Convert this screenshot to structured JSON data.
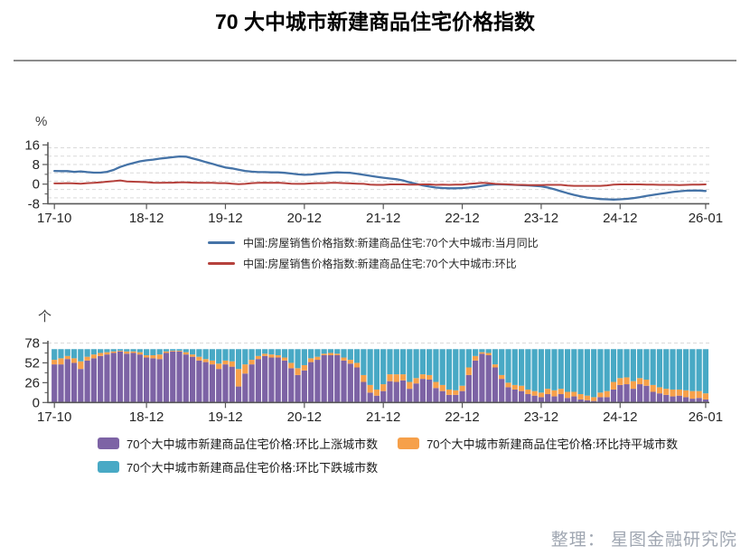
{
  "page": {
    "title": "70 大中城市新建商品住宅价格指数",
    "credit": "整理： 星图金融研究院"
  },
  "colors": {
    "yoy_line": "#4573a7",
    "mom_line": "#b5413c",
    "rise_bar": "#7d63a5",
    "flat_bar": "#f6a04a",
    "fall_bar": "#48a9c5",
    "axis": "#595959",
    "grid": "#d9d9d9",
    "tick_text": "#262626"
  },
  "chart_data": [
    {
      "type": "line",
      "unit_label": "%",
      "ylim": [
        -8,
        16
      ],
      "y_ticks": [
        16,
        8,
        0,
        -8
      ],
      "n_points": 100,
      "x_tick_labels": [
        "17-10",
        "18-12",
        "19-12",
        "20-12",
        "21-12",
        "22-12",
        "23-12",
        "24-12",
        "26-01"
      ],
      "x_tick_indices": [
        0,
        14,
        26,
        38,
        50,
        62,
        74,
        86,
        99
      ],
      "grid": "dashed-horizontal",
      "legend_position": "bottom",
      "series": [
        {
          "name": "中国:房屋销售价格指数:新建商品住宅:70个大中城市:当月同比",
          "color": "#4573a7",
          "values": [
            5.4,
            5.3,
            5.3,
            5.0,
            5.2,
            4.9,
            4.7,
            4.7,
            5.0,
            5.8,
            7.0,
            7.9,
            8.6,
            9.3,
            9.7,
            10.0,
            10.4,
            10.7,
            11.0,
            11.3,
            11.2,
            10.5,
            9.8,
            9.0,
            8.3,
            7.5,
            6.8,
            6.4,
            5.9,
            5.4,
            5.1,
            4.9,
            4.9,
            4.8,
            4.8,
            4.6,
            4.3,
            4.0,
            3.8,
            3.9,
            4.2,
            4.4,
            4.6,
            4.8,
            4.7,
            4.6,
            4.2,
            3.8,
            3.4,
            3.0,
            2.6,
            2.3,
            2.0,
            1.5,
            0.7,
            0.1,
            -0.5,
            -1.0,
            -1.4,
            -1.6,
            -1.7,
            -1.7,
            -1.6,
            -1.4,
            -1.1,
            -0.7,
            -0.3,
            -0.1,
            -0.1,
            -0.2,
            -0.3,
            -0.4,
            -0.5,
            -0.7,
            -0.9,
            -1.4,
            -2.1,
            -2.9,
            -3.7,
            -4.4,
            -5.0,
            -5.5,
            -5.8,
            -6.1,
            -6.2,
            -6.3,
            -6.2,
            -6.0,
            -5.7,
            -5.3,
            -4.8,
            -4.4,
            -4.0,
            -3.6,
            -3.2,
            -2.9,
            -2.7,
            -2.6,
            -2.6,
            -2.8
          ]
        },
        {
          "name": "中国:房屋销售价格指数:新建商品住宅:70个大中城市:环比",
          "color": "#b5413c",
          "values": [
            0.3,
            0.3,
            0.4,
            0.3,
            0.2,
            0.4,
            0.5,
            0.7,
            1.0,
            1.2,
            1.5,
            1.1,
            1.0,
            0.9,
            0.8,
            0.6,
            0.5,
            0.6,
            0.6,
            0.7,
            0.7,
            0.6,
            0.5,
            0.5,
            0.5,
            0.4,
            0.4,
            0.2,
            0.0,
            0.1,
            0.4,
            0.5,
            0.6,
            0.5,
            0.6,
            0.4,
            0.2,
            0.1,
            0.1,
            0.3,
            0.4,
            0.4,
            0.5,
            0.5,
            0.4,
            0.3,
            0.2,
            0.1,
            -0.2,
            -0.3,
            -0.3,
            -0.1,
            -0.1,
            -0.1,
            -0.2,
            -0.2,
            -0.1,
            -0.1,
            -0.3,
            -0.2,
            -0.3,
            -0.2,
            -0.2,
            0.1,
            0.3,
            0.5,
            0.4,
            0.1,
            0.0,
            -0.1,
            -0.3,
            -0.3,
            -0.4,
            -0.4,
            -0.4,
            -0.3,
            -0.3,
            -0.3,
            -0.6,
            -0.7,
            -0.7,
            -0.7,
            -0.7,
            -0.7,
            -0.5,
            -0.2,
            -0.1,
            -0.1,
            -0.1,
            -0.1,
            -0.2,
            -0.2,
            -0.3,
            -0.3,
            -0.3,
            -0.4,
            -0.3,
            -0.2,
            -0.2,
            -0.1
          ]
        }
      ]
    },
    {
      "type": "bar",
      "stacked": true,
      "unit_label": "个",
      "ylim": [
        0,
        78
      ],
      "y_ticks": [
        0,
        26,
        52,
        78
      ],
      "stack_total": 70,
      "n_points": 100,
      "x_tick_labels": [
        "17-10",
        "18-12",
        "19-12",
        "20-12",
        "21-12",
        "22-12",
        "23-12",
        "24-12",
        "26-01"
      ],
      "x_tick_indices": [
        0,
        14,
        26,
        38,
        50,
        62,
        74,
        86,
        99
      ],
      "series": [
        {
          "name": "70个大中城市新建商品住宅价格:环比上涨城市数",
          "color": "#7d63a5",
          "values": [
            50,
            50,
            57,
            52,
            44,
            55,
            58,
            61,
            63,
            65,
            67,
            64,
            65,
            63,
            59,
            58,
            57,
            65,
            67,
            67,
            63,
            60,
            55,
            53,
            50,
            44,
            50,
            47,
            21,
            38,
            50,
            57,
            61,
            59,
            59,
            55,
            45,
            36,
            42,
            53,
            56,
            62,
            62,
            62,
            55,
            51,
            46,
            27,
            13,
            9,
            15,
            28,
            27,
            29,
            18,
            25,
            31,
            30,
            19,
            15,
            10,
            10,
            15,
            36,
            55,
            64,
            62,
            46,
            31,
            20,
            17,
            15,
            11,
            9,
            7,
            11,
            8,
            11,
            6,
            8,
            4,
            3,
            2,
            7,
            7,
            17,
            23,
            24,
            18,
            24,
            22,
            14,
            12,
            10,
            8,
            9,
            7,
            5,
            6,
            4
          ]
        },
        {
          "name": "70个大中城市新建商品住宅价格:环比持平城市数",
          "color": "#f6a04a",
          "values": [
            6,
            8,
            4,
            6,
            10,
            5,
            5,
            4,
            3,
            2,
            1,
            3,
            2,
            3,
            3,
            4,
            6,
            2,
            1,
            1,
            3,
            3,
            5,
            4,
            5,
            7,
            5,
            7,
            23,
            12,
            6,
            4,
            3,
            4,
            3,
            4,
            7,
            9,
            7,
            5,
            4,
            2,
            3,
            2,
            4,
            5,
            6,
            9,
            10,
            8,
            9,
            9,
            10,
            8,
            9,
            7,
            6,
            6,
            8,
            8,
            7,
            6,
            7,
            10,
            6,
            2,
            3,
            4,
            5,
            6,
            6,
            7,
            6,
            6,
            6,
            7,
            8,
            7,
            8,
            6,
            7,
            6,
            5,
            6,
            8,
            10,
            9,
            9,
            10,
            8,
            8,
            9,
            8,
            8,
            9,
            8,
            9,
            10,
            9,
            8
          ]
        },
        {
          "name": "70个大中城市新建商品住宅价格:环比下跌城市数",
          "color": "#48a9c5",
          "values": [
            14,
            12,
            9,
            12,
            16,
            10,
            7,
            5,
            4,
            3,
            2,
            3,
            3,
            4,
            8,
            8,
            7,
            3,
            2,
            2,
            4,
            7,
            10,
            13,
            15,
            19,
            15,
            16,
            26,
            20,
            14,
            9,
            6,
            7,
            8,
            11,
            18,
            25,
            21,
            12,
            10,
            6,
            5,
            6,
            11,
            14,
            18,
            34,
            47,
            53,
            46,
            33,
            33,
            33,
            43,
            38,
            33,
            34,
            43,
            47,
            53,
            54,
            48,
            24,
            9,
            4,
            5,
            20,
            34,
            44,
            47,
            48,
            53,
            55,
            57,
            52,
            54,
            52,
            56,
            56,
            59,
            61,
            63,
            57,
            55,
            43,
            38,
            37,
            42,
            38,
            40,
            47,
            50,
            52,
            53,
            53,
            54,
            55,
            55,
            58
          ]
        }
      ]
    }
  ]
}
